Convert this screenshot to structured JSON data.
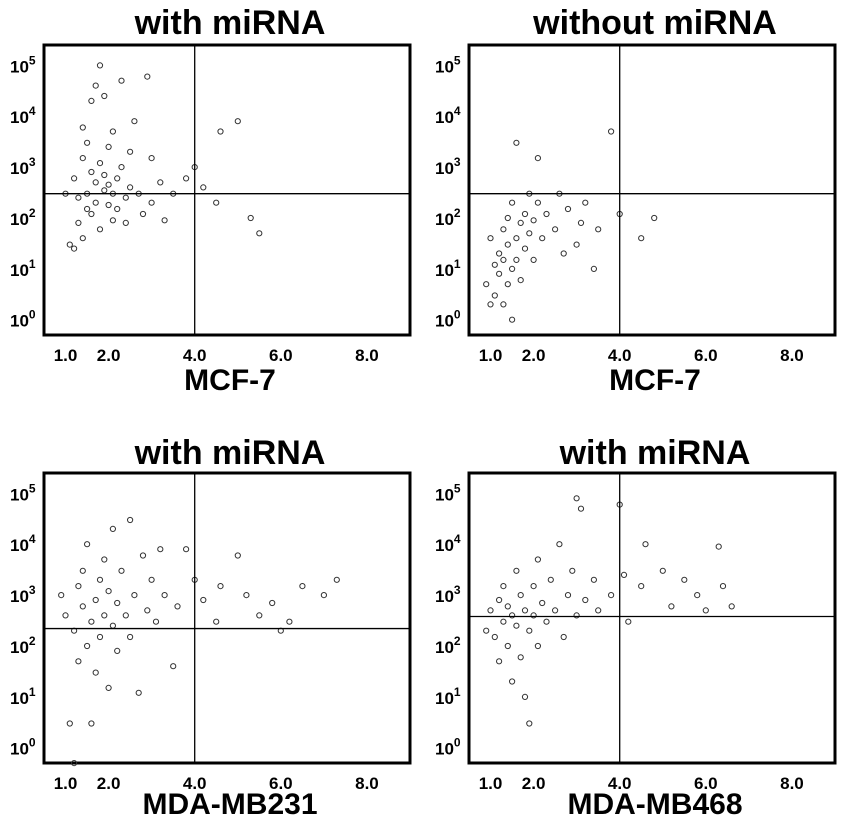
{
  "chart_data": [
    {
      "type": "scatter",
      "title": "with miRNA",
      "xlabel": "MCF-7",
      "x_ticks": [
        "1.0",
        "2.0",
        "4.0",
        "6.0",
        "8.0"
      ],
      "y_ticks": [
        "10",
        "10",
        "10",
        "10",
        "10",
        "10"
      ],
      "y_tick_exponents": [
        "0",
        "1",
        "2",
        "3",
        "4",
        "5"
      ],
      "xlim": [
        0.5,
        9.0
      ],
      "ylim_log10": [
        -0.3,
        5.4
      ],
      "y_scale": "log",
      "quadrant_x": 4.0,
      "quadrant_y": 300,
      "points": [
        [
          1.0,
          300
        ],
        [
          1.1,
          30
        ],
        [
          1.2,
          25
        ],
        [
          1.2,
          600
        ],
        [
          1.3,
          80
        ],
        [
          1.3,
          250
        ],
        [
          1.4,
          40
        ],
        [
          1.4,
          1500
        ],
        [
          1.4,
          6000
        ],
        [
          1.5,
          150
        ],
        [
          1.5,
          3000
        ],
        [
          1.5,
          300
        ],
        [
          1.6,
          120
        ],
        [
          1.6,
          800
        ],
        [
          1.6,
          20000
        ],
        [
          1.7,
          40000
        ],
        [
          1.7,
          500
        ],
        [
          1.7,
          200
        ],
        [
          1.8,
          100000
        ],
        [
          1.8,
          60
        ],
        [
          1.8,
          1200
        ],
        [
          1.9,
          350
        ],
        [
          1.9,
          700
        ],
        [
          1.9,
          25000
        ],
        [
          2.0,
          180
        ],
        [
          2.0,
          2500
        ],
        [
          2.0,
          450
        ],
        [
          2.1,
          90
        ],
        [
          2.1,
          5000
        ],
        [
          2.1,
          300
        ],
        [
          2.2,
          600
        ],
        [
          2.2,
          150
        ],
        [
          2.3,
          50000
        ],
        [
          2.3,
          1000
        ],
        [
          2.4,
          250
        ],
        [
          2.4,
          80
        ],
        [
          2.5,
          2000
        ],
        [
          2.5,
          400
        ],
        [
          2.6,
          8000
        ],
        [
          2.7,
          300
        ],
        [
          2.8,
          120
        ],
        [
          2.9,
          60000
        ],
        [
          3.0,
          1500
        ],
        [
          3.0,
          200
        ],
        [
          3.2,
          500
        ],
        [
          3.3,
          90
        ],
        [
          3.5,
          300
        ],
        [
          3.8,
          600
        ],
        [
          4.0,
          1000
        ],
        [
          4.2,
          400
        ],
        [
          4.5,
          200
        ],
        [
          4.6,
          5000
        ],
        [
          5.0,
          8000
        ],
        [
          5.3,
          100
        ],
        [
          5.5,
          50
        ]
      ]
    },
    {
      "type": "scatter",
      "title": "without miRNA",
      "xlabel": "MCF-7",
      "x_ticks": [
        "1.0",
        "2.0",
        "4.0",
        "6.0",
        "8.0"
      ],
      "y_ticks": [
        "10",
        "10",
        "10",
        "10",
        "10",
        "10"
      ],
      "y_tick_exponents": [
        "0",
        "1",
        "2",
        "3",
        "4",
        "5"
      ],
      "xlim": [
        0.5,
        9.0
      ],
      "ylim_log10": [
        -0.3,
        5.4
      ],
      "y_scale": "log",
      "quadrant_x": 4.0,
      "quadrant_y": 300,
      "points": [
        [
          0.9,
          5
        ],
        [
          1.0,
          2
        ],
        [
          1.0,
          40
        ],
        [
          1.1,
          12
        ],
        [
          1.1,
          3
        ],
        [
          1.2,
          20
        ],
        [
          1.2,
          8
        ],
        [
          1.3,
          60
        ],
        [
          1.3,
          15
        ],
        [
          1.3,
          2
        ],
        [
          1.4,
          30
        ],
        [
          1.4,
          100
        ],
        [
          1.4,
          5
        ],
        [
          1.5,
          10
        ],
        [
          1.5,
          200
        ],
        [
          1.5,
          1
        ],
        [
          1.6,
          40
        ],
        [
          1.6,
          3000
        ],
        [
          1.6,
          15
        ],
        [
          1.7,
          80
        ],
        [
          1.7,
          6
        ],
        [
          1.8,
          120
        ],
        [
          1.8,
          25
        ],
        [
          1.9,
          300
        ],
        [
          1.9,
          50
        ],
        [
          2.0,
          90
        ],
        [
          2.0,
          15
        ],
        [
          2.1,
          1500
        ],
        [
          2.1,
          200
        ],
        [
          2.2,
          40
        ],
        [
          2.3,
          120
        ],
        [
          2.5,
          60
        ],
        [
          2.6,
          300
        ],
        [
          2.7,
          20
        ],
        [
          2.8,
          150
        ],
        [
          3.0,
          30
        ],
        [
          3.1,
          80
        ],
        [
          3.2,
          200
        ],
        [
          3.4,
          10
        ],
        [
          3.5,
          60
        ],
        [
          3.8,
          5000
        ],
        [
          4.0,
          120
        ],
        [
          4.5,
          40
        ],
        [
          4.8,
          100
        ]
      ]
    },
    {
      "type": "scatter",
      "title": "with miRNA",
      "xlabel": "MDA-MB231",
      "x_ticks": [
        "1.0",
        "2.0",
        "4.0",
        "6.0",
        "8.0"
      ],
      "y_ticks": [
        "10",
        "10",
        "10",
        "10",
        "10",
        "10"
      ],
      "y_tick_exponents": [
        "0",
        "1",
        "2",
        "3",
        "4",
        "5"
      ],
      "xlim": [
        0.5,
        9.0
      ],
      "ylim_log10": [
        -0.3,
        5.4
      ],
      "y_scale": "log",
      "quadrant_x": 4.0,
      "quadrant_y": 220,
      "points": [
        [
          0.9,
          1000
        ],
        [
          1.0,
          400
        ],
        [
          1.1,
          3
        ],
        [
          1.2,
          0.5
        ],
        [
          1.2,
          200
        ],
        [
          1.3,
          1500
        ],
        [
          1.3,
          50
        ],
        [
          1.4,
          600
        ],
        [
          1.4,
          3000
        ],
        [
          1.5,
          100
        ],
        [
          1.5,
          10000
        ],
        [
          1.6,
          300
        ],
        [
          1.6,
          3
        ],
        [
          1.7,
          800
        ],
        [
          1.7,
          30
        ],
        [
          1.8,
          2000
        ],
        [
          1.8,
          150
        ],
        [
          1.9,
          5000
        ],
        [
          1.9,
          400
        ],
        [
          2.0,
          15
        ],
        [
          2.0,
          1200
        ],
        [
          2.1,
          250
        ],
        [
          2.1,
          20000
        ],
        [
          2.2,
          700
        ],
        [
          2.2,
          80
        ],
        [
          2.3,
          3000
        ],
        [
          2.4,
          400
        ],
        [
          2.5,
          30000
        ],
        [
          2.5,
          150
        ],
        [
          2.6,
          1000
        ],
        [
          2.7,
          12
        ],
        [
          2.8,
          6000
        ],
        [
          2.9,
          500
        ],
        [
          3.0,
          2000
        ],
        [
          3.1,
          300
        ],
        [
          3.2,
          8000
        ],
        [
          3.3,
          1000
        ],
        [
          3.5,
          40
        ],
        [
          3.6,
          600
        ],
        [
          3.8,
          8000
        ],
        [
          4.0,
          2000
        ],
        [
          4.2,
          800
        ],
        [
          4.5,
          300
        ],
        [
          4.6,
          1500
        ],
        [
          5.0,
          6000
        ],
        [
          5.2,
          1000
        ],
        [
          5.5,
          400
        ],
        [
          5.8,
          700
        ],
        [
          6.0,
          200
        ],
        [
          6.2,
          300
        ],
        [
          6.5,
          1500
        ],
        [
          7.0,
          1000
        ],
        [
          7.3,
          2000
        ]
      ]
    },
    {
      "type": "scatter",
      "title": "with miRNA",
      "xlabel": "MDA-MB468",
      "x_ticks": [
        "1.0",
        "2.0",
        "4.0",
        "6.0",
        "8.0"
      ],
      "y_ticks": [
        "10",
        "10",
        "10",
        "10",
        "10",
        "10"
      ],
      "y_tick_exponents": [
        "0",
        "1",
        "2",
        "3",
        "4",
        "5"
      ],
      "xlim": [
        0.5,
        9.0
      ],
      "ylim_log10": [
        -0.3,
        5.4
      ],
      "y_scale": "log",
      "quadrant_x": 4.0,
      "quadrant_y": 380,
      "points": [
        [
          0.9,
          200
        ],
        [
          1.0,
          500
        ],
        [
          1.1,
          150
        ],
        [
          1.2,
          800
        ],
        [
          1.2,
          50
        ],
        [
          1.3,
          300
        ],
        [
          1.3,
          1500
        ],
        [
          1.4,
          100
        ],
        [
          1.4,
          600
        ],
        [
          1.5,
          20
        ],
        [
          1.5,
          400
        ],
        [
          1.6,
          3000
        ],
        [
          1.6,
          250
        ],
        [
          1.7,
          60
        ],
        [
          1.7,
          1000
        ],
        [
          1.8,
          10
        ],
        [
          1.8,
          500
        ],
        [
          1.9,
          3
        ],
        [
          1.9,
          200
        ],
        [
          2.0,
          1500
        ],
        [
          2.0,
          400
        ],
        [
          2.1,
          5000
        ],
        [
          2.1,
          100
        ],
        [
          2.2,
          700
        ],
        [
          2.3,
          300
        ],
        [
          2.4,
          2000
        ],
        [
          2.5,
          500
        ],
        [
          2.6,
          10000
        ],
        [
          2.7,
          150
        ],
        [
          2.8,
          1000
        ],
        [
          2.9,
          3000
        ],
        [
          3.0,
          400
        ],
        [
          3.0,
          80000
        ],
        [
          3.1,
          50000
        ],
        [
          3.2,
          800
        ],
        [
          3.4,
          2000
        ],
        [
          3.5,
          500
        ],
        [
          3.8,
          1000
        ],
        [
          4.0,
          60000
        ],
        [
          4.1,
          2500
        ],
        [
          4.2,
          300
        ],
        [
          4.5,
          1500
        ],
        [
          4.6,
          10000
        ],
        [
          5.0,
          3000
        ],
        [
          5.2,
          600
        ],
        [
          5.5,
          2000
        ],
        [
          5.8,
          1000
        ],
        [
          6.0,
          500
        ],
        [
          6.3,
          9000
        ],
        [
          6.4,
          1500
        ],
        [
          6.6,
          600
        ]
      ]
    }
  ]
}
